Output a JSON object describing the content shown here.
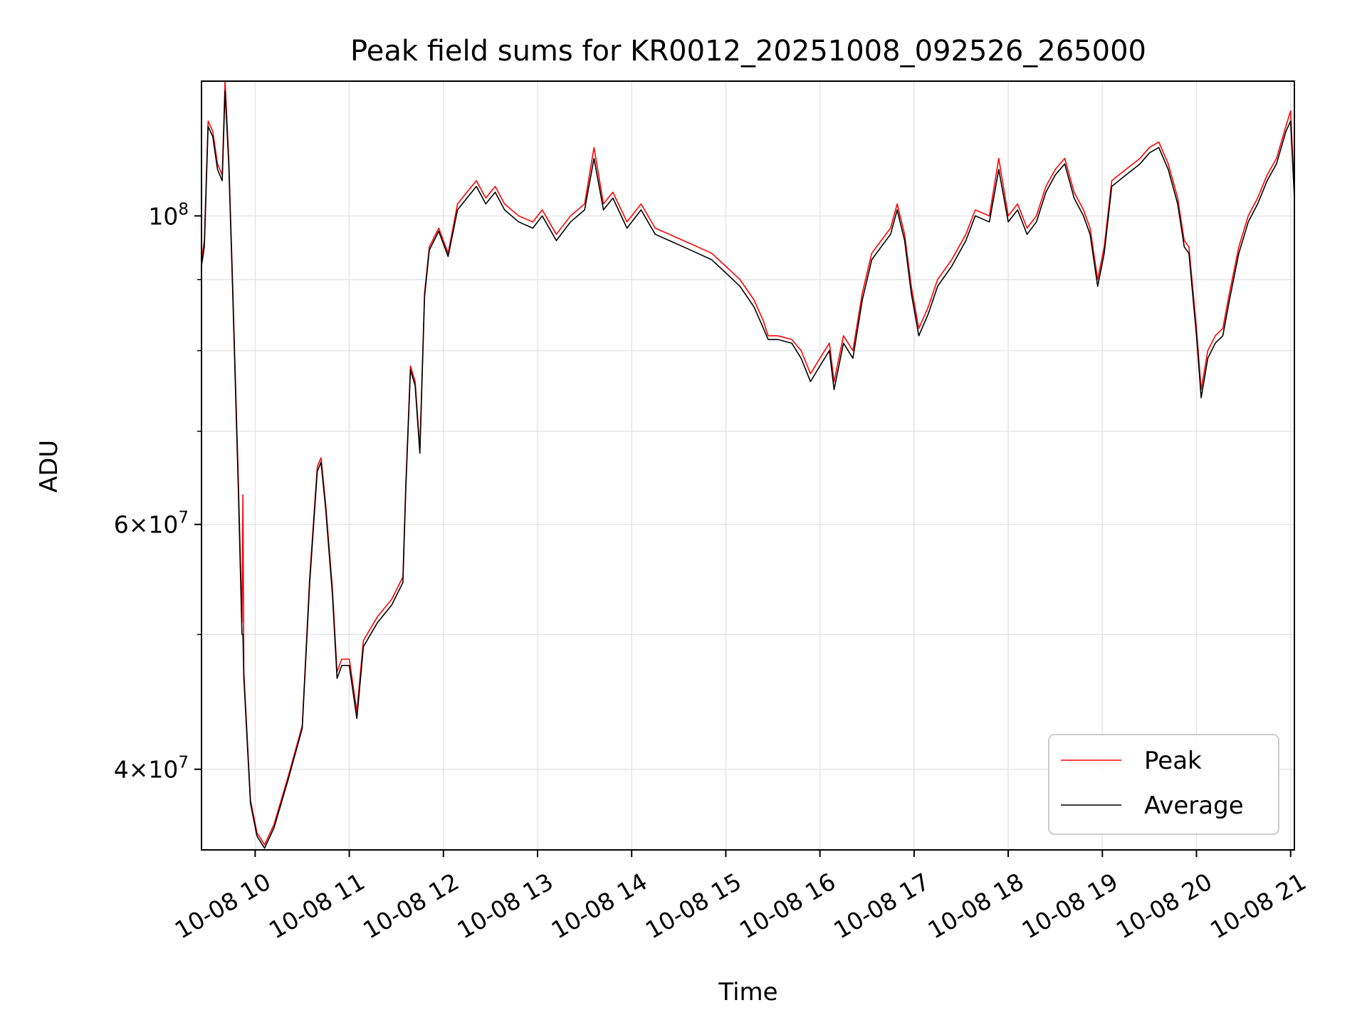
{
  "chart_data": {
    "type": "line",
    "title": "Peak field sums for KR0012_20251008_092526_265000",
    "xlabel": "Time",
    "ylabel": "ADU",
    "yscale": "log",
    "xlim_hours": [
      9.43,
      21.04
    ],
    "ylim": [
      35000000,
      125000000
    ],
    "x_ticks": [
      {
        "hour": 10,
        "label": "10-08 10"
      },
      {
        "hour": 11,
        "label": "10-08 11"
      },
      {
        "hour": 12,
        "label": "10-08 12"
      },
      {
        "hour": 13,
        "label": "10-08 13"
      },
      {
        "hour": 14,
        "label": "10-08 14"
      },
      {
        "hour": 15,
        "label": "10-08 15"
      },
      {
        "hour": 16,
        "label": "10-08 16"
      },
      {
        "hour": 17,
        "label": "10-08 17"
      },
      {
        "hour": 18,
        "label": "10-08 18"
      },
      {
        "hour": 19,
        "label": "10-08 19"
      },
      {
        "hour": 20,
        "label": "10-08 20"
      },
      {
        "hour": 21,
        "label": "10-08 21"
      }
    ],
    "y_major_ticks": [
      {
        "value": 40000000,
        "base": "4",
        "exp": "7"
      },
      {
        "value": 60000000,
        "base": "6",
        "exp": "7"
      },
      {
        "value": 100000000,
        "base": "",
        "exp": "8"
      }
    ],
    "y_minor_ticks": [
      50000000,
      70000000,
      80000000,
      90000000
    ],
    "grid": true,
    "legend_position": "lower right",
    "series": [
      {
        "name": "Peak",
        "color": "#ff0000",
        "points": [
          [
            9.43,
            93000000
          ],
          [
            9.46,
            96000000
          ],
          [
            9.5,
            117000000
          ],
          [
            9.55,
            115000000
          ],
          [
            9.6,
            109000000
          ],
          [
            9.65,
            107000000
          ],
          [
            9.68,
            125000000
          ],
          [
            9.72,
            110000000
          ],
          [
            9.76,
            90000000
          ],
          [
            9.82,
            65000000
          ],
          [
            9.86,
            51000000
          ],
          [
            9.87,
            63000000
          ],
          [
            9.88,
            47000000
          ],
          [
            9.95,
            38000000
          ],
          [
            10.02,
            36000000
          ],
          [
            10.1,
            35300000
          ],
          [
            10.2,
            36500000
          ],
          [
            10.35,
            39500000
          ],
          [
            10.5,
            43000000
          ],
          [
            10.58,
            55000000
          ],
          [
            10.66,
            66000000
          ],
          [
            10.7,
            67000000
          ],
          [
            10.75,
            62000000
          ],
          [
            10.82,
            54000000
          ],
          [
            10.87,
            47000000
          ],
          [
            10.92,
            48000000
          ],
          [
            11.0,
            48000000
          ],
          [
            11.08,
            44000000
          ],
          [
            11.15,
            49500000
          ],
          [
            11.3,
            51500000
          ],
          [
            11.45,
            53000000
          ],
          [
            11.57,
            55000000
          ],
          [
            11.6,
            64000000
          ],
          [
            11.65,
            78000000
          ],
          [
            11.7,
            76000000
          ],
          [
            11.75,
            68000000
          ],
          [
            11.8,
            88000000
          ],
          [
            11.85,
            95000000
          ],
          [
            11.95,
            98000000
          ],
          [
            12.05,
            94000000
          ],
          [
            12.15,
            102000000
          ],
          [
            12.25,
            104000000
          ],
          [
            12.35,
            106000000
          ],
          [
            12.45,
            103000000
          ],
          [
            12.55,
            105000000
          ],
          [
            12.65,
            102000000
          ],
          [
            12.8,
            100000000
          ],
          [
            12.95,
            99000000
          ],
          [
            13.05,
            101000000
          ],
          [
            13.2,
            97000000
          ],
          [
            13.35,
            100000000
          ],
          [
            13.5,
            102000000
          ],
          [
            13.6,
            112000000
          ],
          [
            13.7,
            102000000
          ],
          [
            13.8,
            104000000
          ],
          [
            13.95,
            99000000
          ],
          [
            14.1,
            102000000
          ],
          [
            14.25,
            98000000
          ],
          [
            14.4,
            97000000
          ],
          [
            14.55,
            96000000
          ],
          [
            14.7,
            95000000
          ],
          [
            14.85,
            94000000
          ],
          [
            15.0,
            92000000
          ],
          [
            15.15,
            90000000
          ],
          [
            15.3,
            87000000
          ],
          [
            15.4,
            84000000
          ],
          [
            15.45,
            82000000
          ],
          [
            15.55,
            82000000
          ],
          [
            15.7,
            81500000
          ],
          [
            15.8,
            80000000
          ],
          [
            15.9,
            77000000
          ],
          [
            16.0,
            79000000
          ],
          [
            16.1,
            81000000
          ],
          [
            16.15,
            76000000
          ],
          [
            16.25,
            82000000
          ],
          [
            16.35,
            80000000
          ],
          [
            16.45,
            88000000
          ],
          [
            16.55,
            94000000
          ],
          [
            16.65,
            96000000
          ],
          [
            16.75,
            98000000
          ],
          [
            16.82,
            102000000
          ],
          [
            16.9,
            97000000
          ],
          [
            16.97,
            89000000
          ],
          [
            17.05,
            83000000
          ],
          [
            17.15,
            86000000
          ],
          [
            17.25,
            90000000
          ],
          [
            17.4,
            93000000
          ],
          [
            17.55,
            97000000
          ],
          [
            17.65,
            101000000
          ],
          [
            17.8,
            100000000
          ],
          [
            17.9,
            110000000
          ],
          [
            18.0,
            100000000
          ],
          [
            18.1,
            102000000
          ],
          [
            18.2,
            98000000
          ],
          [
            18.3,
            100000000
          ],
          [
            18.4,
            105000000
          ],
          [
            18.5,
            108000000
          ],
          [
            18.6,
            110000000
          ],
          [
            18.7,
            104000000
          ],
          [
            18.8,
            101000000
          ],
          [
            18.87,
            98000000
          ],
          [
            18.95,
            90000000
          ],
          [
            19.02,
            95000000
          ],
          [
            19.1,
            106000000
          ],
          [
            19.25,
            108000000
          ],
          [
            19.4,
            110000000
          ],
          [
            19.5,
            112000000
          ],
          [
            19.6,
            113000000
          ],
          [
            19.7,
            109000000
          ],
          [
            19.8,
            103000000
          ],
          [
            19.87,
            96000000
          ],
          [
            19.92,
            95000000
          ],
          [
            20.0,
            83000000
          ],
          [
            20.05,
            75000000
          ],
          [
            20.12,
            80000000
          ],
          [
            20.2,
            82000000
          ],
          [
            20.28,
            83000000
          ],
          [
            20.35,
            88000000
          ],
          [
            20.45,
            95000000
          ],
          [
            20.55,
            100000000
          ],
          [
            20.65,
            103000000
          ],
          [
            20.75,
            107000000
          ],
          [
            20.85,
            110000000
          ],
          [
            20.95,
            116000000
          ],
          [
            21.0,
            119000000
          ],
          [
            21.04,
            104000000
          ]
        ]
      },
      {
        "name": "Average",
        "color": "#000000",
        "points": [
          [
            9.43,
            92000000
          ],
          [
            9.46,
            95000000
          ],
          [
            9.5,
            116000000
          ],
          [
            9.55,
            114000000
          ],
          [
            9.6,
            108000000
          ],
          [
            9.65,
            106000000
          ],
          [
            9.68,
            123000000
          ],
          [
            9.72,
            109000000
          ],
          [
            9.76,
            89000000
          ],
          [
            9.82,
            64000000
          ],
          [
            9.86,
            50000000
          ],
          [
            9.87,
            50000000
          ],
          [
            9.88,
            46500000
          ],
          [
            9.95,
            37800000
          ],
          [
            10.02,
            35800000
          ],
          [
            10.1,
            35100000
          ],
          [
            10.2,
            36300000
          ],
          [
            10.35,
            39300000
          ],
          [
            10.5,
            42800000
          ],
          [
            10.58,
            54500000
          ],
          [
            10.66,
            65500000
          ],
          [
            10.7,
            66500000
          ],
          [
            10.75,
            61500000
          ],
          [
            10.82,
            53500000
          ],
          [
            10.87,
            46500000
          ],
          [
            10.92,
            47500000
          ],
          [
            11.0,
            47500000
          ],
          [
            11.08,
            43500000
          ],
          [
            11.15,
            49000000
          ],
          [
            11.3,
            51000000
          ],
          [
            11.45,
            52500000
          ],
          [
            11.57,
            54500000
          ],
          [
            11.6,
            63500000
          ],
          [
            11.65,
            77500000
          ],
          [
            11.7,
            75500000
          ],
          [
            11.75,
            67500000
          ],
          [
            11.8,
            87500000
          ],
          [
            11.85,
            94500000
          ],
          [
            11.95,
            97500000
          ],
          [
            12.05,
            93500000
          ],
          [
            12.15,
            101000000
          ],
          [
            12.25,
            103000000
          ],
          [
            12.35,
            105000000
          ],
          [
            12.45,
            102000000
          ],
          [
            12.55,
            104000000
          ],
          [
            12.65,
            101000000
          ],
          [
            12.8,
            99000000
          ],
          [
            12.95,
            98000000
          ],
          [
            13.05,
            100000000
          ],
          [
            13.2,
            96000000
          ],
          [
            13.35,
            99000000
          ],
          [
            13.5,
            101000000
          ],
          [
            13.6,
            110000000
          ],
          [
            13.7,
            101000000
          ],
          [
            13.8,
            103000000
          ],
          [
            13.95,
            98000000
          ],
          [
            14.1,
            101000000
          ],
          [
            14.25,
            97000000
          ],
          [
            14.4,
            96000000
          ],
          [
            14.55,
            95000000
          ],
          [
            14.7,
            94000000
          ],
          [
            14.85,
            93000000
          ],
          [
            15.0,
            91000000
          ],
          [
            15.15,
            89000000
          ],
          [
            15.3,
            86000000
          ],
          [
            15.4,
            83000000
          ],
          [
            15.45,
            81500000
          ],
          [
            15.55,
            81500000
          ],
          [
            15.7,
            81000000
          ],
          [
            15.8,
            79000000
          ],
          [
            15.9,
            76000000
          ],
          [
            16.0,
            78000000
          ],
          [
            16.1,
            80000000
          ],
          [
            16.15,
            75000000
          ],
          [
            16.25,
            81000000
          ],
          [
            16.35,
            79000000
          ],
          [
            16.45,
            87000000
          ],
          [
            16.55,
            93000000
          ],
          [
            16.65,
            95000000
          ],
          [
            16.75,
            97000000
          ],
          [
            16.82,
            101000000
          ],
          [
            16.9,
            96000000
          ],
          [
            16.97,
            88000000
          ],
          [
            17.05,
            82000000
          ],
          [
            17.15,
            85000000
          ],
          [
            17.25,
            89000000
          ],
          [
            17.4,
            92000000
          ],
          [
            17.55,
            96000000
          ],
          [
            17.65,
            100000000
          ],
          [
            17.8,
            99000000
          ],
          [
            17.9,
            108000000
          ],
          [
            18.0,
            99000000
          ],
          [
            18.1,
            101000000
          ],
          [
            18.2,
            97000000
          ],
          [
            18.3,
            99000000
          ],
          [
            18.4,
            104000000
          ],
          [
            18.5,
            107000000
          ],
          [
            18.6,
            109000000
          ],
          [
            18.7,
            103000000
          ],
          [
            18.8,
            100000000
          ],
          [
            18.87,
            97000000
          ],
          [
            18.95,
            89000000
          ],
          [
            19.02,
            94000000
          ],
          [
            19.1,
            105000000
          ],
          [
            19.25,
            107000000
          ],
          [
            19.4,
            109000000
          ],
          [
            19.5,
            111000000
          ],
          [
            19.6,
            112000000
          ],
          [
            19.7,
            108000000
          ],
          [
            19.8,
            102000000
          ],
          [
            19.87,
            95000000
          ],
          [
            19.92,
            94000000
          ],
          [
            20.0,
            82000000
          ],
          [
            20.05,
            74000000
          ],
          [
            20.12,
            79000000
          ],
          [
            20.2,
            81000000
          ],
          [
            20.28,
            82000000
          ],
          [
            20.35,
            87000000
          ],
          [
            20.45,
            94000000
          ],
          [
            20.55,
            99000000
          ],
          [
            20.65,
            102000000
          ],
          [
            20.75,
            106000000
          ],
          [
            20.85,
            109000000
          ],
          [
            20.95,
            115000000
          ],
          [
            21.0,
            117000000
          ],
          [
            21.04,
            103000000
          ]
        ]
      }
    ]
  }
}
